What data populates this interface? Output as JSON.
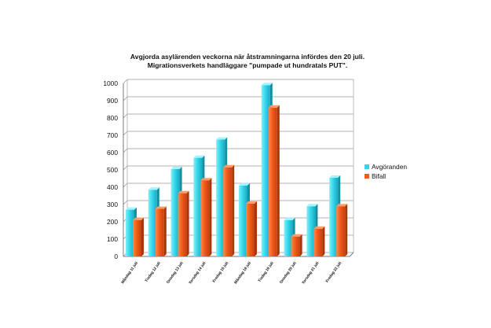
{
  "chart_data": {
    "type": "bar",
    "title": "Avgjorda asylärenden veckorna när åtstramningarna infördes den 20 juli.",
    "subtitle": "Migrationsverkets handläggare \"pumpade ut hundratals PUT\".",
    "xlabel": "",
    "ylabel": "",
    "ylim": [
      0,
      1000
    ],
    "yticks": [
      0,
      100,
      200,
      300,
      400,
      500,
      600,
      700,
      800,
      900,
      1000
    ],
    "grid": true,
    "legend_position": "right",
    "categories": [
      "Måndag 11 juli",
      "Tisdag 12 juli",
      "Onsdag 13 juli",
      "Torsdag 14 juli",
      "Fredag 15 juli",
      "Måndag 18 juli",
      "Tisdag 19 juli",
      "Onsdag 20 juli",
      "Torsdag 21 juli",
      "Fredag 22 juli"
    ],
    "series": [
      {
        "name": "Avgöranden",
        "color": "#35d4e8",
        "values": [
          270,
          385,
          505,
          570,
          675,
          410,
          990,
          210,
          290,
          455
        ]
      },
      {
        "name": "Bifall",
        "color": "#f05a1e",
        "values": [
          210,
          275,
          365,
          440,
          515,
          305,
          860,
          115,
          160,
          290
        ]
      }
    ]
  }
}
